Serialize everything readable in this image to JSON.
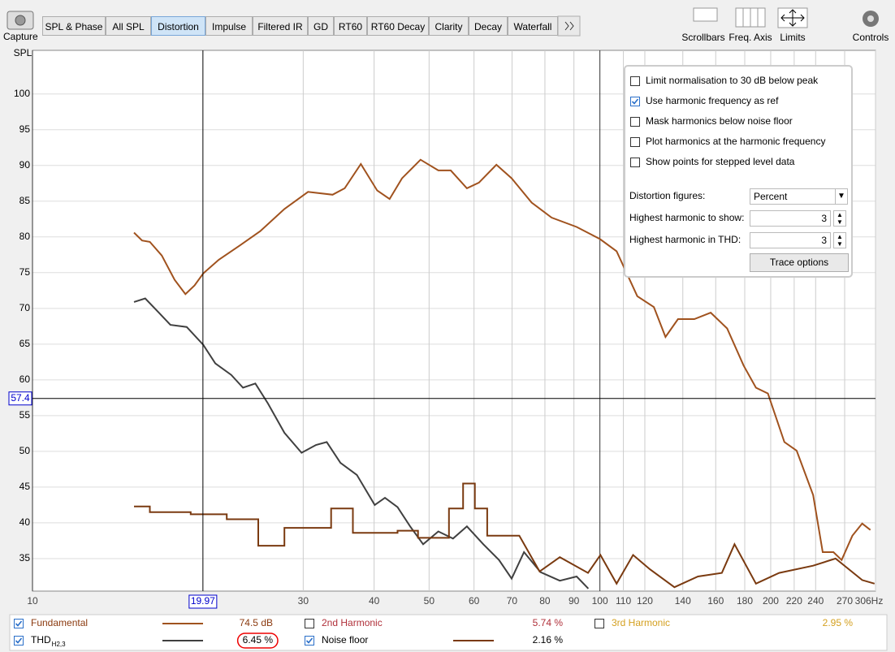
{
  "toolbar": {
    "capture": "Capture",
    "tabs": [
      "SPL & Phase",
      "All SPL",
      "Distortion",
      "Impulse",
      "Filtered IR",
      "GD",
      "RT60",
      "RT60 Decay",
      "Clarity",
      "Decay",
      "Waterfall"
    ],
    "active_tab": 2,
    "buttons": [
      "Scrollbars",
      "Freq. Axis",
      "Limits",
      "Controls"
    ]
  },
  "chart_data": {
    "type": "line",
    "y_label": "SPL",
    "x_scale": "log",
    "xlim": [
      10,
      306
    ],
    "ylim": [
      30.45,
      106.1
    ],
    "xticks": [
      10,
      30,
      40,
      50,
      60,
      70,
      80,
      90,
      100,
      110,
      120,
      140,
      160,
      180,
      200,
      220,
      240,
      270,
      {
        "value": 306,
        "label": "306Hz"
      }
    ],
    "yticks": [
      35,
      40,
      45,
      50,
      55,
      60,
      65,
      70,
      75,
      80,
      85,
      90,
      95,
      100
    ],
    "grid": true,
    "cursor": {
      "x": 19.97,
      "y": 57.4
    },
    "series": [
      {
        "name": "Fundamental",
        "color": "#a0521e",
        "label_color": "#8b3a0f",
        "checked": true,
        "reading": "74.5 dB",
        "x": [
          15.1,
          15.6,
          16.1,
          16.9,
          17.8,
          18.6,
          19.3,
          20,
          21.3,
          23.2,
          25.2,
          27.8,
          30.6,
          33.8,
          35.5,
          37.9,
          40.5,
          42.6,
          44.8,
          48.3,
          51.9,
          54.6,
          58.3,
          61.2,
          65.7,
          69.9,
          75.8,
          82.2,
          91,
          100,
          107,
          116.4,
          124.5,
          130.5,
          137.3,
          146.7,
          156.8,
          167.6,
          179.2,
          188.4,
          197.7,
          211.4,
          222.2,
          237.6,
          247,
          258,
          266.7,
          278.6,
          289.9,
          299.7
        ],
        "values": [
          80.6,
          79.5,
          79.3,
          77.4,
          74,
          72,
          73.2,
          74.9,
          76.8,
          78.8,
          80.8,
          83.9,
          86.3,
          85.9,
          86.8,
          90.2,
          86.5,
          85.3,
          88.2,
          90.8,
          89.3,
          89.3,
          86.8,
          87.6,
          90.1,
          88.2,
          84.8,
          82.7,
          81.4,
          79.7,
          78,
          71.7,
          70.2,
          66,
          68.5,
          68.5,
          69.4,
          67.2,
          62,
          58.9,
          58.1,
          51.3,
          50.1,
          43.9,
          35.9,
          35.9,
          34.8,
          38.2,
          39.9,
          39
        ]
      },
      {
        "name": "2nd Harmonic",
        "color": "#b0303a",
        "label_color": "#b0303a",
        "checked": false,
        "reading": "5.74 %"
      },
      {
        "name": "3rd Harmonic",
        "color": "#d4a020",
        "label_color": "#d4a020",
        "checked": false,
        "reading": "2.95 %"
      },
      {
        "name": "THD",
        "subscript": "H2,3",
        "color": "#404040",
        "label_color": "#000000",
        "checked": true,
        "reading": "6.45 %",
        "reading_highlighted": true,
        "x": [
          15.1,
          15.8,
          16.7,
          17.5,
          18.7,
          20,
          21,
          22.4,
          23.5,
          24.7,
          26,
          27.8,
          29.8,
          31.6,
          33,
          34.9,
          37.3,
          40.1,
          41.8,
          44,
          46.3,
          48.8,
          51.9,
          55.1,
          58.3,
          62.3,
          66.4,
          69.9,
          73.5,
          78.6,
          85,
          91,
          95.4
        ],
        "values": [
          70.9,
          71.4,
          69.4,
          67.7,
          67.4,
          64.9,
          62.3,
          60.7,
          58.9,
          59.5,
          56.7,
          52.6,
          49.8,
          50.9,
          51.3,
          48.4,
          46.7,
          42.5,
          43.5,
          42.2,
          39.5,
          37,
          38.8,
          37.8,
          39.5,
          37,
          34.8,
          32.2,
          35.9,
          33.1,
          31.9,
          32.5,
          30.8
        ]
      },
      {
        "name": "Noise floor",
        "color": "#7a3a10",
        "label_color": "#000000",
        "checked": true,
        "reading": "2.16 %",
        "x": [
          15.1,
          16.1,
          16.1,
          19,
          19,
          22,
          22,
          25,
          25,
          27.8,
          27.8,
          33.6,
          33.6,
          36.7,
          36.7,
          44,
          44,
          47.8,
          47.8,
          54.2,
          54.2,
          57.4,
          57.4,
          60.2,
          60.2,
          63.3,
          63.3,
          72.1,
          78.3,
          85,
          95.3,
          100.2,
          107,
          114.4,
          122.5,
          135.3,
          148.9,
          164,
          172.7,
          188.4,
          206.9,
          237.6,
          260.2,
          289.9,
          304.8
        ],
        "values": [
          42.3,
          42.3,
          41.5,
          41.5,
          41.2,
          41.2,
          40.5,
          40.5,
          36.8,
          36.8,
          39.3,
          39.3,
          42,
          42,
          38.6,
          38.6,
          38.9,
          38.9,
          37.9,
          37.9,
          42,
          42,
          45.5,
          45.5,
          42,
          42,
          38.2,
          38.2,
          33.2,
          35.2,
          33,
          35.5,
          31.5,
          35.5,
          33.5,
          31,
          32.5,
          33,
          37,
          31.5,
          33,
          34,
          35,
          32,
          31.5
        ]
      }
    ]
  },
  "options": {
    "checkboxes": [
      {
        "label": "Limit normalisation to 30 dB below peak",
        "checked": false
      },
      {
        "label": "Use harmonic frequency as ref",
        "checked": true
      },
      {
        "label": "Mask harmonics below noise floor",
        "checked": false
      },
      {
        "label": "Plot harmonics at the harmonic frequency",
        "checked": false
      },
      {
        "label": "Show points for stepped level data",
        "checked": false
      }
    ],
    "fields": [
      {
        "label": "Distortion figures:",
        "value": "Percent"
      },
      {
        "label": "Highest harmonic to show:",
        "value": 3
      },
      {
        "label": "Highest harmonic in THD:",
        "value": 3
      }
    ],
    "button": "Trace options"
  }
}
